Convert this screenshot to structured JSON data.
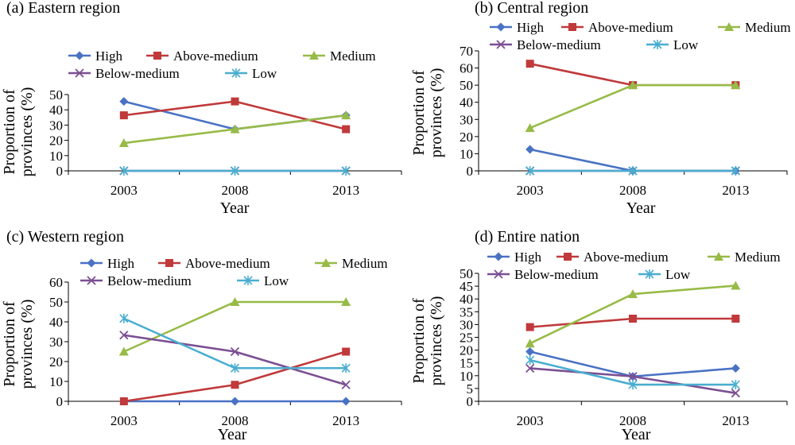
{
  "colors": {
    "High": "#4a72c4",
    "Above-medium": "#c0393b",
    "Medium": "#97bb47",
    "Below-medium": "#7b4f93",
    "Low": "#4aaed0"
  },
  "legend_marker_names": {
    "High": "diamond",
    "Above-medium": "square",
    "Medium": "triangle",
    "Below-medium": "x-cross",
    "Low": "asterisk"
  },
  "chart_data": [
    {
      "type": "line",
      "title": "(a) Eastern region",
      "xlabel": "Year",
      "ylabel": [
        "Proportion of",
        "provinces (%)"
      ],
      "x": [
        "2003",
        "2008",
        "2013"
      ],
      "ylim": [
        0,
        50
      ],
      "yticks": [
        0,
        10,
        20,
        30,
        40,
        50
      ],
      "legend_position": "top",
      "series": [
        {
          "name": "High",
          "values": [
            45.5,
            27.3,
            36.4
          ]
        },
        {
          "name": "Above-medium",
          "values": [
            36.4,
            45.5,
            27.3
          ]
        },
        {
          "name": "Medium",
          "values": [
            18.2,
            27.3,
            36.4
          ]
        },
        {
          "name": "Below-medium",
          "values": [
            0,
            0,
            0
          ]
        },
        {
          "name": "Low",
          "values": [
            0,
            0,
            0
          ]
        }
      ]
    },
    {
      "type": "line",
      "title": "(b) Central region",
      "xlabel": "Year",
      "ylabel": [
        "Proportion of",
        "provinces (%)"
      ],
      "x": [
        "2003",
        "2008",
        "2013"
      ],
      "ylim": [
        0,
        70
      ],
      "yticks": [
        0,
        10,
        20,
        30,
        40,
        50,
        60,
        70
      ],
      "legend_position": "top",
      "series": [
        {
          "name": "High",
          "values": [
            12.5,
            0,
            0
          ]
        },
        {
          "name": "Above-medium",
          "values": [
            62.5,
            50,
            50
          ]
        },
        {
          "name": "Medium",
          "values": [
            25,
            50,
            50
          ]
        },
        {
          "name": "Below-medium",
          "values": [
            0,
            0,
            0
          ]
        },
        {
          "name": "Low",
          "values": [
            0,
            0,
            0
          ]
        }
      ]
    },
    {
      "type": "line",
      "title": "(c) Western region",
      "xlabel": "Year",
      "ylabel": [
        "Proportion of",
        "provinces (%)"
      ],
      "x": [
        "2003",
        "2008",
        "2013"
      ],
      "ylim": [
        0,
        60
      ],
      "yticks": [
        0,
        10,
        20,
        30,
        40,
        50,
        60
      ],
      "legend_position": "top",
      "series": [
        {
          "name": "High",
          "values": [
            0,
            0,
            0
          ]
        },
        {
          "name": "Above-medium",
          "values": [
            0,
            8.3,
            25
          ]
        },
        {
          "name": "Medium",
          "values": [
            25,
            50,
            50
          ]
        },
        {
          "name": "Below-medium",
          "values": [
            33.3,
            25,
            8.3
          ]
        },
        {
          "name": "Low",
          "values": [
            41.7,
            16.7,
            16.7
          ]
        }
      ]
    },
    {
      "type": "line",
      "title": "(d) Entire nation",
      "xlabel": "Year",
      "ylabel": [
        "Proportion of",
        "provinces (%)"
      ],
      "x": [
        "2003",
        "2008",
        "2013"
      ],
      "ylim": [
        0,
        50
      ],
      "yticks": [
        0,
        5,
        10,
        15,
        20,
        25,
        30,
        35,
        40,
        45,
        50
      ],
      "legend_position": "top",
      "series": [
        {
          "name": "High",
          "values": [
            19.4,
            9.7,
            12.9
          ]
        },
        {
          "name": "Above-medium",
          "values": [
            29,
            32.3,
            32.3
          ]
        },
        {
          "name": "Medium",
          "values": [
            22.6,
            41.9,
            45.2
          ]
        },
        {
          "name": "Below-medium",
          "values": [
            12.9,
            9.7,
            3.2
          ]
        },
        {
          "name": "Low",
          "values": [
            16.1,
            6.5,
            6.5
          ]
        }
      ]
    }
  ]
}
